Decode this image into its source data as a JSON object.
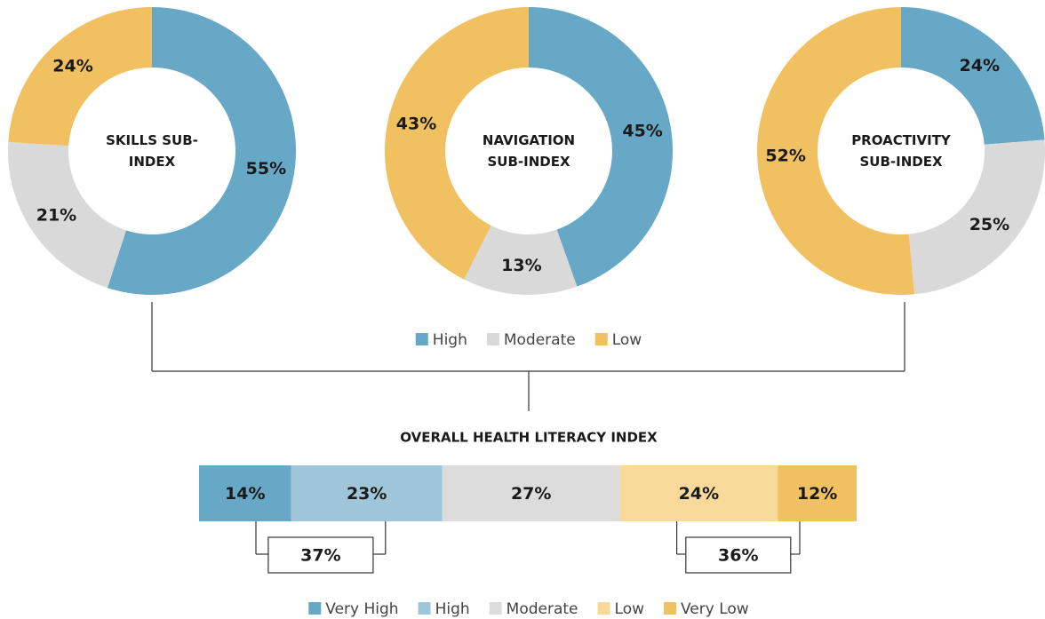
{
  "chart_data": [
    {
      "type": "donut",
      "categories": [
        "High",
        "Moderate",
        "Low"
      ],
      "colors": [
        "#67a8c6",
        "#d9d9d9",
        "#f1c060"
      ],
      "series": [
        {
          "name": "SKILLS SUB-INDEX",
          "values": [
            55,
            21,
            24
          ],
          "value_labels": [
            "55%",
            "21%",
            "24%"
          ]
        },
        {
          "name": "NAVIGATION SUB-INDEX",
          "values": [
            45,
            13,
            43
          ],
          "value_labels": [
            "45%",
            "13%",
            "43%"
          ]
        },
        {
          "name": "PROACTIVITY SUB-INDEX",
          "values": [
            24,
            25,
            52
          ],
          "value_labels": [
            "24%",
            "25%",
            "52%"
          ]
        }
      ]
    },
    {
      "type": "stacked_bar",
      "title": "OVERALL HEALTH LITERACY INDEX",
      "categories": [
        "Very High",
        "High",
        "Moderate",
        "Low",
        "Very Low"
      ],
      "colors": [
        "#67a8c6",
        "#9fc5d8",
        "#dcdcdc",
        "#f7d99a",
        "#f1c060"
      ],
      "values": [
        14,
        23,
        27,
        24,
        12
      ],
      "value_labels": [
        "14%",
        "23%",
        "27%",
        "24%",
        "12%"
      ],
      "annotations": [
        {
          "value": 37,
          "label": "37%"
        },
        {
          "value": 36,
          "label": "36%"
        }
      ]
    }
  ]
}
